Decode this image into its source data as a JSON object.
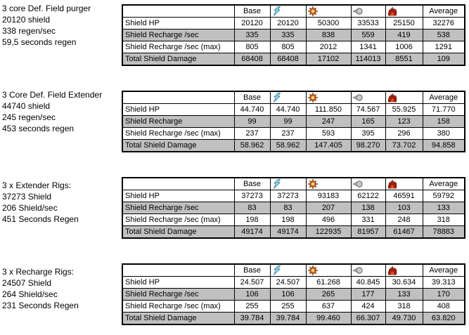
{
  "colors": {
    "row_shade": "#c0c0c0",
    "border": "#000000",
    "em": "#2e8aa8",
    "em_fill": "#cdeef7",
    "thermal": "#e07818",
    "thermal_dark": "#7a3008",
    "thermal_core": "#ffe2b0",
    "kinetic": "#606060",
    "kinetic_light": "#c9c9c9",
    "explosive": "#a61e0a",
    "explosive_dark": "#5e0f04",
    "explosive_light": "#d8502a"
  },
  "columns": [
    {
      "header": "",
      "icon": null,
      "name": "row-label"
    },
    {
      "header": "Base",
      "icon": null,
      "name": "base"
    },
    {
      "header": "",
      "icon": "em-icon",
      "name": "em-damage"
    },
    {
      "header": "",
      "icon": "thermal-icon",
      "name": "thermal-damage"
    },
    {
      "header": "",
      "icon": "kinetic-icon",
      "name": "kinetic-damage"
    },
    {
      "header": "",
      "icon": "explosive-icon",
      "name": "explosive-damage"
    },
    {
      "header": "Average",
      "icon": null,
      "name": "average"
    }
  ],
  "sections": [
    {
      "info_lines": [
        "3 core Def. Field purger",
        "20120 shield",
        "338 regen/sec",
        "59,5 seconds regen"
      ],
      "rows": [
        {
          "label": "Shield HP",
          "shaded": false,
          "values": [
            "20120",
            "20120",
            "50300",
            "33533",
            "25150",
            "32276"
          ]
        },
        {
          "label": "Shield Recharge /sec",
          "shaded": true,
          "values": [
            "335",
            "335",
            "838",
            "559",
            "419",
            "538"
          ]
        },
        {
          "label": "Shield Recharge /sec (max)",
          "shaded": false,
          "values": [
            "805",
            "805",
            "2012",
            "1341",
            "1006",
            "1291"
          ]
        },
        {
          "label": "Total Shield Damage",
          "shaded": true,
          "values": [
            "68408",
            "68408",
            "17102",
            "114013",
            "8551",
            "109"
          ]
        }
      ]
    },
    {
      "info_lines": [
        "3 Core Def. Field Extender",
        "44740 shield",
        "245 regen/sec",
        "453 seconds regen"
      ],
      "rows": [
        {
          "label": "Shield HP",
          "shaded": false,
          "values": [
            "44.740",
            "44.740",
            "111.850",
            "74.567",
            "55.925",
            "71.770"
          ]
        },
        {
          "label": "Shield Recharge",
          "shaded": true,
          "values": [
            "99",
            "99",
            "247",
            "165",
            "123",
            "158"
          ]
        },
        {
          "label": "Shield Recharge /sec (max)",
          "shaded": false,
          "values": [
            "237",
            "237",
            "593",
            "395",
            "296",
            "380"
          ]
        },
        {
          "label": "Total Shield Damage",
          "shaded": true,
          "values": [
            "58.962",
            "58.962",
            "147.405",
            "98.270",
            "73.702",
            "94.858"
          ]
        }
      ]
    },
    {
      "info_lines": [
        "3 x Extender Rigs:",
        "37273 Shield",
        "206 Shield/sec",
        "451 Seconds Regen"
      ],
      "rows": [
        {
          "label": "Shield HP",
          "shaded": false,
          "values": [
            "37273",
            "37273",
            "93183",
            "62122",
            "46591",
            "59792"
          ]
        },
        {
          "label": "Shield Recharge /sec",
          "shaded": true,
          "values": [
            "83",
            "83",
            "207",
            "138",
            "103",
            "133"
          ]
        },
        {
          "label": "Shield Recharge /sec (max)",
          "shaded": false,
          "values": [
            "198",
            "198",
            "496",
            "331",
            "248",
            "318"
          ]
        },
        {
          "label": "Total Shield Damage",
          "shaded": true,
          "values": [
            "49174",
            "49174",
            "122935",
            "81957",
            "61467",
            "78883"
          ]
        }
      ]
    },
    {
      "info_lines": [
        "3 x Recharge Rigs:",
        "24507 Shield",
        "264 Shield/sec",
        "231 Seconds Regen"
      ],
      "rows": [
        {
          "label": "Shield HP",
          "shaded": false,
          "values": [
            "24.507",
            "24.507",
            "61.268",
            "40.845",
            "30.634",
            "39.313"
          ]
        },
        {
          "label": "Shield Recharge /sec",
          "shaded": true,
          "values": [
            "106",
            "106",
            "265",
            "177",
            "133",
            "170"
          ]
        },
        {
          "label": "Shield Recharge /sec (max)",
          "shaded": false,
          "values": [
            "255",
            "255",
            "637",
            "424",
            "318",
            "408"
          ]
        },
        {
          "label": "Total Shield Damage",
          "shaded": true,
          "values": [
            "39.784",
            "39.784",
            "99.460",
            "66.307",
            "49.730",
            "63.820"
          ]
        }
      ]
    }
  ]
}
